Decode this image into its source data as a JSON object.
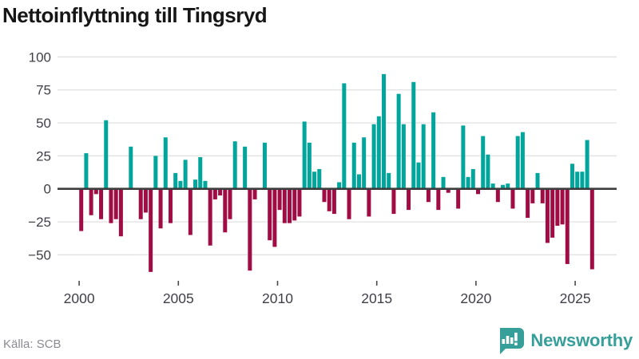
{
  "title": "Nettoinflyttning till Tingsryd",
  "source": "Källa: SCB",
  "branding": {
    "name": "Newsworthy"
  },
  "colors": {
    "positive": "#00a59c",
    "negative": "#a00d45",
    "grid": "#e3e3e3",
    "zero_line": "#3d3d3d",
    "axis_text": "#3f3f48",
    "tick_mark": "#4a4a4a",
    "title_text": "#161616",
    "source_text": "#8a8a92",
    "brand": "#379f99"
  },
  "chart_data": {
    "type": "bar",
    "title": "Nettoinflyttning till Tingsryd",
    "frequency": "quarterly",
    "start": "2000Q1",
    "end": "2025Q4",
    "grid": true,
    "ylim": [
      -70,
      105
    ],
    "y_ticks": [
      100,
      75,
      50,
      25,
      0,
      -25,
      -50
    ],
    "y_tick_labels": [
      "100",
      "75",
      "50",
      "25",
      "0",
      "−25",
      "−50"
    ],
    "x_tick_years": [
      "2000",
      "2005",
      "2010",
      "2015",
      "2020",
      "2025"
    ],
    "values_by_year": {
      "2000": [
        -32,
        27,
        -20,
        -4
      ],
      "2001": [
        -23,
        52,
        -26,
        -23
      ],
      "2002": [
        -36,
        0,
        32,
        0
      ],
      "2003": [
        -23,
        -18,
        -63,
        25
      ],
      "2004": [
        -30,
        39,
        -26,
        12
      ],
      "2005": [
        6,
        22,
        -35,
        7
      ],
      "2006": [
        24,
        6,
        -43,
        -8
      ],
      "2007": [
        -5,
        -33,
        -23,
        36
      ],
      "2008": [
        0,
        32,
        -62,
        -8
      ],
      "2009": [
        0,
        35,
        -39,
        -44
      ],
      "2010": [
        -16,
        -26,
        -26,
        -24
      ],
      "2011": [
        -21,
        51,
        35,
        13
      ],
      "2012": [
        15,
        -10,
        -17,
        -19
      ],
      "2013": [
        5,
        80,
        -23,
        35
      ],
      "2014": [
        11,
        39,
        -21,
        49
      ],
      "2015": [
        55,
        87,
        12,
        -19
      ],
      "2016": [
        72,
        49,
        -16,
        81
      ],
      "2017": [
        20,
        49,
        -10,
        58
      ],
      "2018": [
        -16,
        9,
        -3,
        0
      ],
      "2019": [
        -15,
        48,
        9,
        15
      ],
      "2020": [
        -4,
        40,
        26,
        4
      ],
      "2021": [
        -10,
        3,
        4,
        -15
      ],
      "2022": [
        40,
        43,
        -22,
        -11
      ],
      "2023": [
        12,
        -11,
        -41,
        -37
      ],
      "2024": [
        -28,
        -27,
        -57,
        19
      ],
      "2025": [
        13,
        13,
        37,
        -61
      ]
    }
  }
}
